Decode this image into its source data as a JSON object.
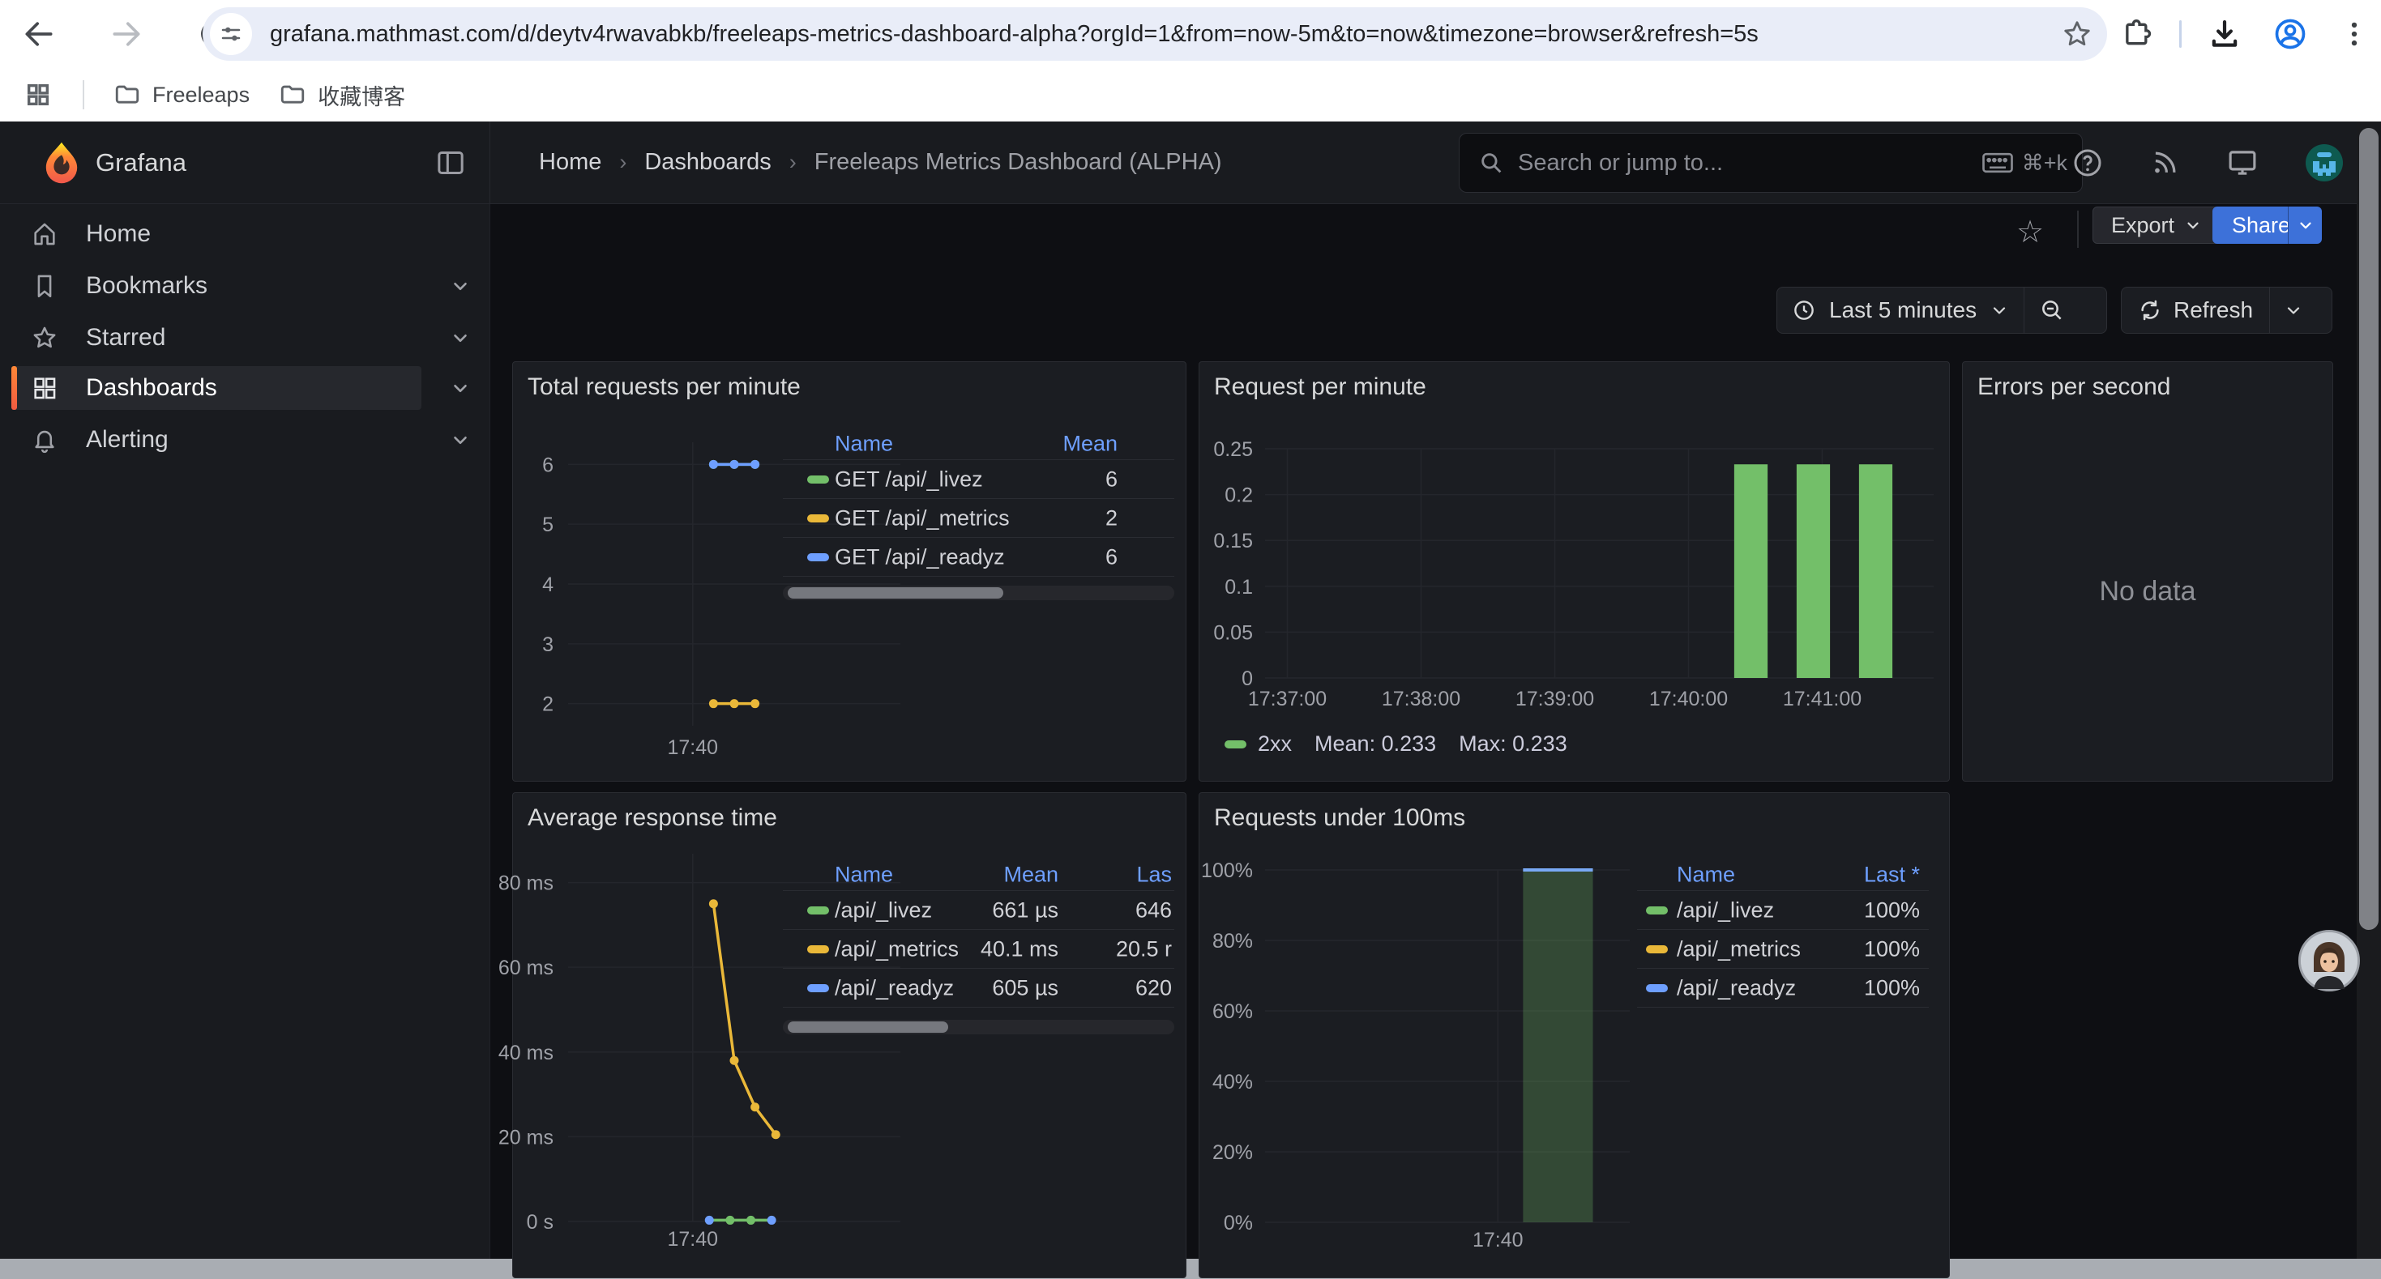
{
  "browser": {
    "url": "grafana.mathmast.com/d/deytv4rwavabkb/freeleaps-metrics-dashboard-alpha?orgId=1&from=now-5m&to=now&timezone=browser&refresh=5s",
    "bookmarks": [
      "Freeleaps",
      "收藏博客"
    ]
  },
  "nav": {
    "brand": "Grafana",
    "breadcrumbs": [
      "Home",
      "Dashboards",
      "Freeleaps Metrics Dashboard (ALPHA)"
    ],
    "search_placeholder": "Search or jump to...",
    "search_shortcut": "⌘+k"
  },
  "sidebar": {
    "items": [
      {
        "label": "Home"
      },
      {
        "label": "Bookmarks"
      },
      {
        "label": "Starred"
      },
      {
        "label": "Dashboards"
      },
      {
        "label": "Alerting"
      }
    ],
    "active": "Dashboards"
  },
  "toolbar": {
    "export_label": "Export",
    "share_label": "Share",
    "time_range_label": "Last 5 minutes",
    "refresh_label": "Refresh"
  },
  "colors": {
    "green": "#73BF69",
    "yellow": "#EAB839",
    "blue": "#6E9FFF",
    "share_blue": "#3D71D9",
    "brand_orange": "#FF8837"
  },
  "panels": {
    "total_requests": {
      "title": "Total requests per minute",
      "table": {
        "headers": [
          "Name",
          "Mean"
        ],
        "rows": [
          {
            "color": "#73BF69",
            "name": "GET /api/_livez",
            "cols": [
              "6"
            ]
          },
          {
            "color": "#EAB839",
            "name": "GET /api/_metrics",
            "cols": [
              "2"
            ]
          },
          {
            "color": "#6E9FFF",
            "name": "GET /api/_readyz",
            "cols": [
              "6"
            ]
          }
        ]
      }
    },
    "request_per_minute": {
      "title": "Request per minute",
      "legend": {
        "series": "2xx",
        "mean": "Mean: 0.233",
        "max": "Max: 0.233"
      }
    },
    "errors_per_second": {
      "title": "Errors per second",
      "message": "No data"
    },
    "average_response_time": {
      "title": "Average response time",
      "table": {
        "headers": [
          "Name",
          "Mean",
          "Las"
        ],
        "rows": [
          {
            "color": "#73BF69",
            "name": "/api/_livez",
            "cols": [
              "661 µs",
              "646"
            ]
          },
          {
            "color": "#EAB839",
            "name": "/api/_metrics",
            "cols": [
              "40.1 ms",
              "20.5 r"
            ]
          },
          {
            "color": "#6E9FFF",
            "name": "/api/_readyz",
            "cols": [
              "605 µs",
              "620"
            ]
          }
        ]
      }
    },
    "requests_under_100ms": {
      "title": "Requests under 100ms",
      "table": {
        "headers": [
          "Name",
          "Last *"
        ],
        "rows": [
          {
            "color": "#73BF69",
            "name": "/api/_livez",
            "cols": [
              "100%"
            ]
          },
          {
            "color": "#EAB839",
            "name": "/api/_metrics",
            "cols": [
              "100%"
            ]
          },
          {
            "color": "#6E9FFF",
            "name": "/api/_readyz",
            "cols": [
              "100%"
            ]
          }
        ]
      }
    }
  },
  "chart_data": [
    {
      "id": "total_requests_per_minute",
      "type": "line",
      "title": "Total requests per minute",
      "ylim": [
        1.63,
        6.37
      ],
      "yticks": [
        {
          "v": 6,
          "label": "6"
        },
        {
          "v": 5,
          "label": "5"
        },
        {
          "v": 4,
          "label": "4"
        },
        {
          "v": 3,
          "label": "3"
        },
        {
          "v": 2,
          "label": "2"
        }
      ],
      "xlim": [
        0,
        160
      ],
      "xticks": [
        {
          "t": 60,
          "label": "17:40"
        }
      ],
      "series": [
        {
          "name": "GET /api/_livez",
          "color": "#73BF69",
          "points": [
            {
              "t": 70,
              "v": 6
            },
            {
              "t": 80,
              "v": 6
            },
            {
              "t": 90,
              "v": 6
            }
          ]
        },
        {
          "name": "GET /api/_metrics",
          "color": "#EAB839",
          "points": [
            {
              "t": 70,
              "v": 2
            },
            {
              "t": 80,
              "v": 2
            },
            {
              "t": 90,
              "v": 2
            }
          ]
        },
        {
          "name": "GET /api/_readyz",
          "color": "#6E9FFF",
          "points": [
            {
              "t": 70,
              "v": 6
            },
            {
              "t": 80,
              "v": 6
            },
            {
              "t": 90,
              "v": 6
            }
          ]
        }
      ]
    },
    {
      "id": "request_per_minute",
      "type": "bar",
      "title": "Request per minute",
      "ylim": [
        0,
        0.25
      ],
      "yticks": [
        {
          "v": 0.25,
          "label": "0.25"
        },
        {
          "v": 0.2,
          "label": "0.2"
        },
        {
          "v": 0.15,
          "label": "0.15"
        },
        {
          "v": 0.1,
          "label": "0.1"
        },
        {
          "v": 0.05,
          "label": "0.05"
        },
        {
          "v": 0,
          "label": "0"
        }
      ],
      "xlim": [
        0,
        300
      ],
      "xticks": [
        {
          "t": 10,
          "label": "17:37:00"
        },
        {
          "t": 70,
          "label": "17:38:00"
        },
        {
          "t": 130,
          "label": "17:39:00"
        },
        {
          "t": 190,
          "label": "17:40:00"
        },
        {
          "t": 250,
          "label": "17:41:00"
        }
      ],
      "bars": [
        {
          "t": 218,
          "v": 0.233,
          "w": 15,
          "fill": "#73BF69"
        },
        {
          "t": 246,
          "v": 0.233,
          "w": 15,
          "fill": "#73BF69"
        },
        {
          "t": 274,
          "v": 0.233,
          "w": 15,
          "fill": "#73BF69"
        }
      ],
      "legend": {
        "series": "2xx",
        "mean": 0.233,
        "max": 0.233
      }
    },
    {
      "id": "errors_per_second",
      "type": "none",
      "title": "Errors per second",
      "message": "No data"
    },
    {
      "id": "average_response_time",
      "type": "line",
      "title": "Average response time",
      "ylabel_unit": "ms",
      "ylim": [
        0,
        86.8
      ],
      "yticks": [
        {
          "v": 80,
          "label": "80 ms"
        },
        {
          "v": 60,
          "label": "60 ms"
        },
        {
          "v": 40,
          "label": "40 ms"
        },
        {
          "v": 20,
          "label": "20 ms"
        },
        {
          "v": 0,
          "label": "0 s"
        }
      ],
      "xlim": [
        0,
        160
      ],
      "xticks": [
        {
          "t": 60,
          "label": "17:40"
        }
      ],
      "series": [
        {
          "name": "/api/_metrics",
          "color": "#EAB839",
          "points": [
            {
              "t": 70,
              "v": 75
            },
            {
              "t": 80,
              "v": 38
            },
            {
              "t": 90,
              "v": 27
            },
            {
              "t": 100,
              "v": 20.5
            }
          ]
        },
        {
          "name": "/api/_livez",
          "color": "#73BF69",
          "dots": false,
          "points": [
            {
              "t": 68,
              "v": 0.3
            },
            {
              "t": 98,
              "v": 0.3
            }
          ]
        }
      ],
      "markers": [
        {
          "t": 68,
          "v": 0.3,
          "color": "#6E9FFF"
        },
        {
          "t": 78,
          "v": 0.3,
          "color": "#73BF69"
        },
        {
          "t": 88,
          "v": 0.3,
          "color": "#73BF69"
        },
        {
          "t": 98,
          "v": 0.3,
          "color": "#6E9FFF"
        }
      ]
    },
    {
      "id": "requests_under_100ms",
      "type": "bar",
      "title": "Requests under 100ms",
      "ylim": [
        0,
        100
      ],
      "yticks": [
        {
          "v": 100,
          "label": "100%"
        },
        {
          "v": 80,
          "label": "80%"
        },
        {
          "v": 60,
          "label": "60%"
        },
        {
          "v": 40,
          "label": "40%"
        },
        {
          "v": 20,
          "label": "20%"
        },
        {
          "v": 0,
          "label": "0%"
        }
      ],
      "xlim": [
        0,
        188
      ],
      "xticks": [
        {
          "t": 120,
          "label": "17:40"
        }
      ],
      "bars": [
        {
          "t": 151,
          "v": 100,
          "w": 36,
          "fill": "rgba(115,191,105,0.28)",
          "top": "#79A9F5"
        }
      ]
    }
  ]
}
